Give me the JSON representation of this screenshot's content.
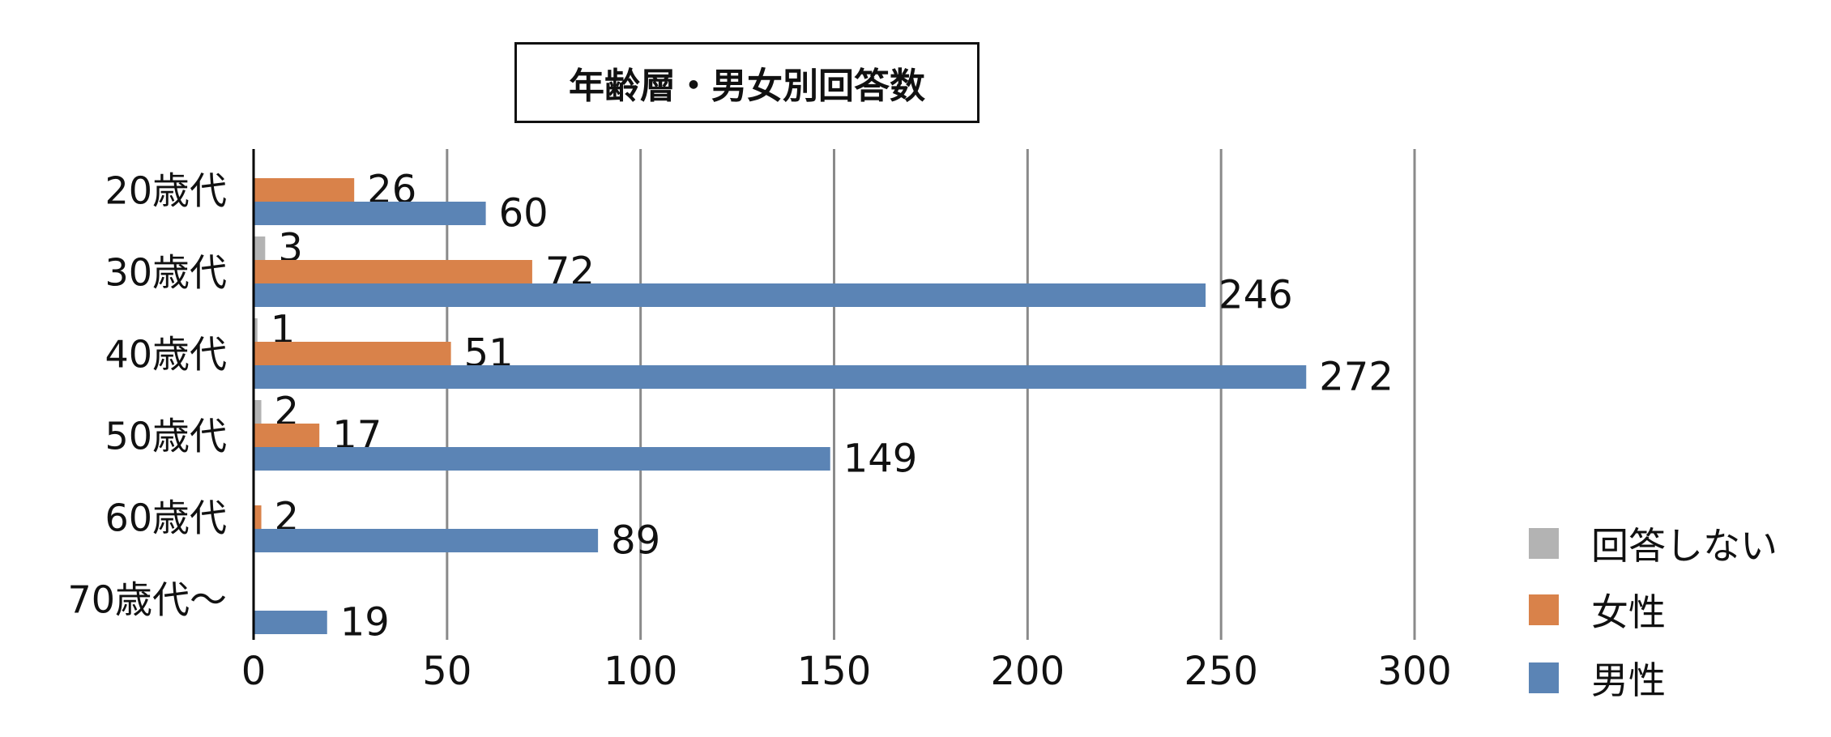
{
  "chart_data": {
    "type": "bar",
    "orientation": "horizontal",
    "title": "年齢層・男女別回答数",
    "categories": [
      "20歳代",
      "30歳代",
      "40歳代",
      "50歳代",
      "60歳代",
      "70歳代〜"
    ],
    "series": [
      {
        "name": "回答しない",
        "color": "#b3b3b3",
        "values": [
          null,
          3,
          1,
          2,
          null,
          null
        ]
      },
      {
        "name": "女性",
        "color": "#d9824a",
        "values": [
          26,
          72,
          51,
          17,
          2,
          null
        ]
      },
      {
        "name": "男性",
        "color": "#5b84b5",
        "values": [
          60,
          246,
          272,
          149,
          89,
          19
        ]
      }
    ],
    "xlim": [
      0,
      300
    ],
    "xticks": [
      0,
      50,
      100,
      150,
      200,
      250,
      300
    ],
    "grid": true,
    "legend_position": "bottom-right",
    "data_labels": true
  }
}
